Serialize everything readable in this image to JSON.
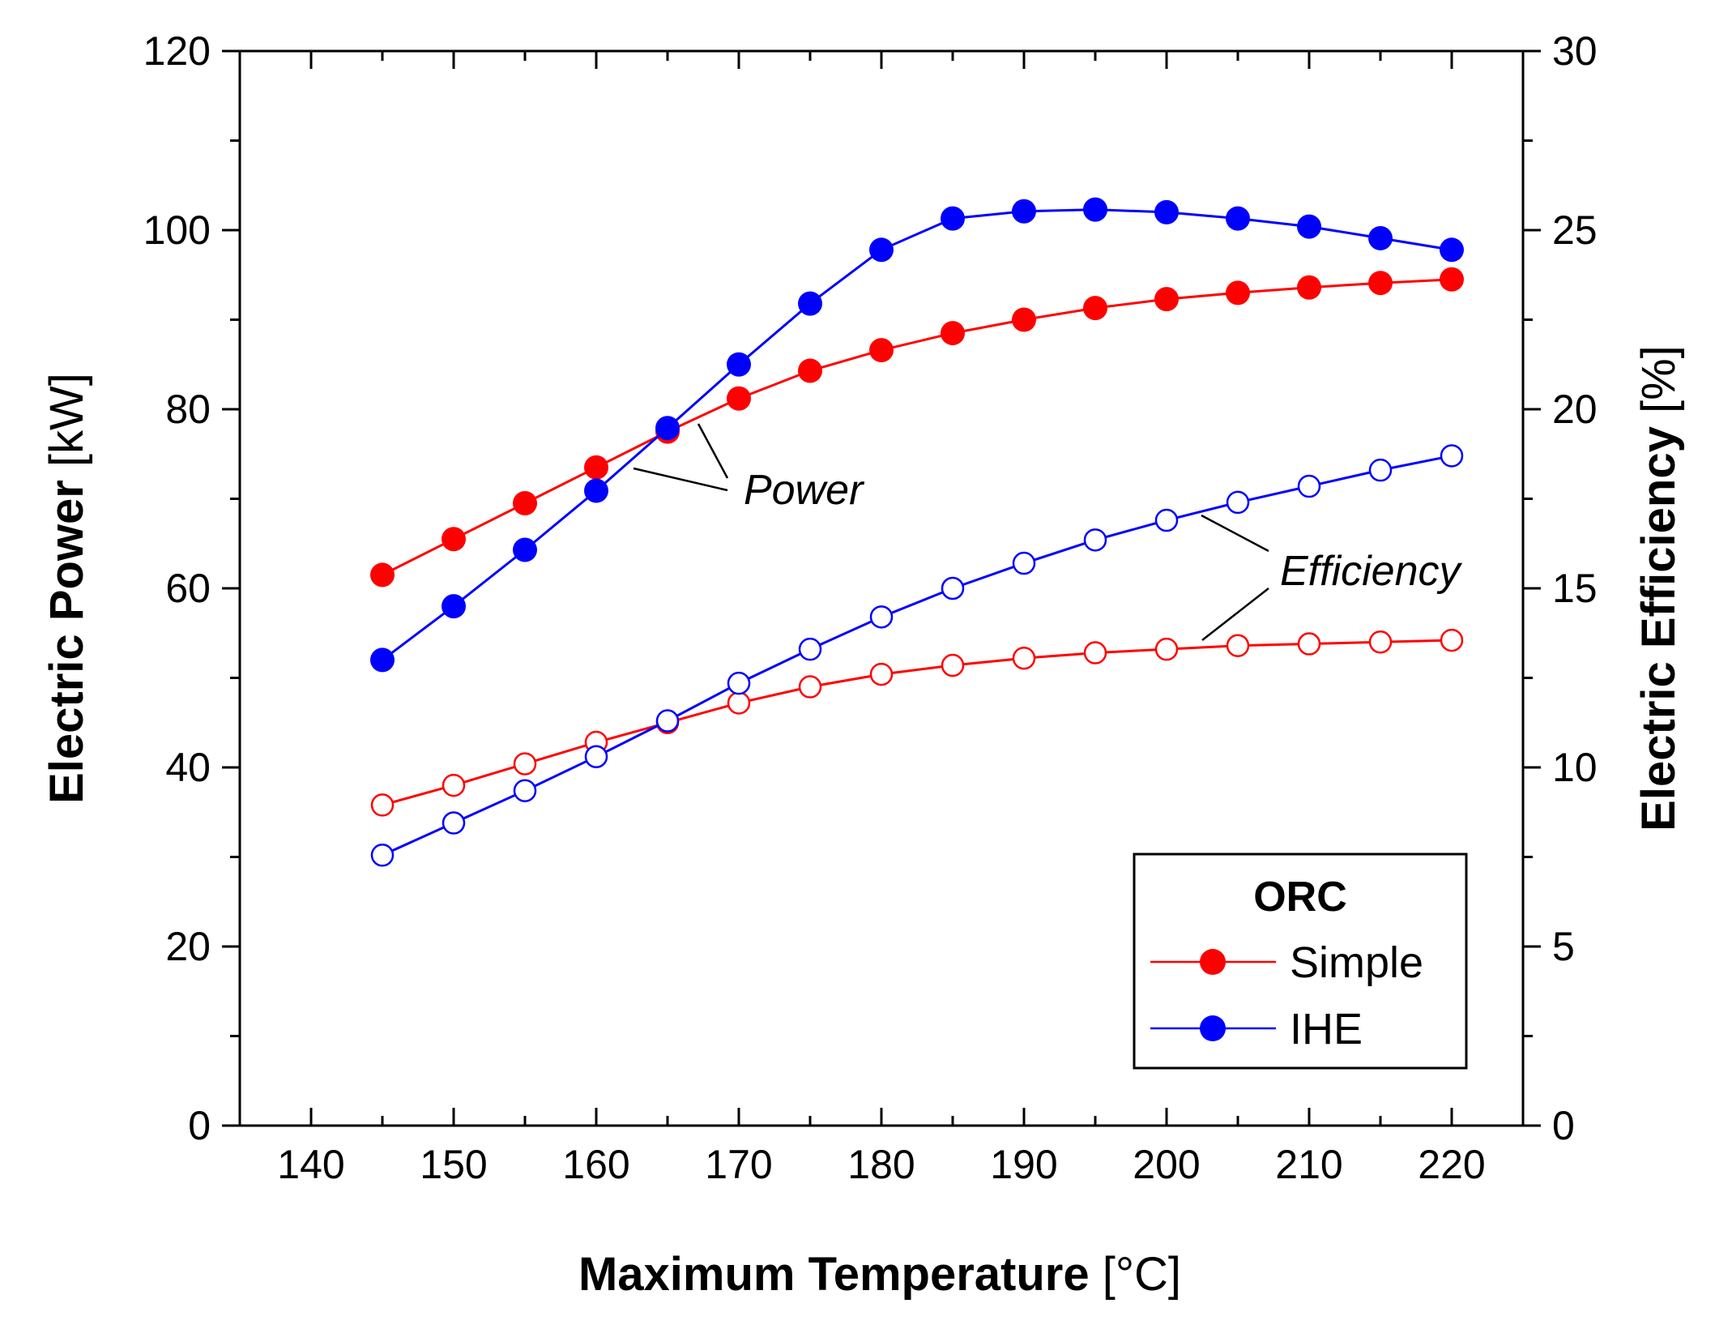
{
  "chart_data": {
    "type": "line",
    "xlabel": {
      "bold": "Maximum Temperature",
      "unit": "[°C]"
    },
    "ylabel_left": {
      "bold": "Electric Power",
      "unit": "[kW]"
    },
    "ylabel_right": {
      "bold": "Electric Efficiency",
      "unit": "[%]"
    },
    "xlim": [
      135,
      225
    ],
    "ylim_left": [
      0,
      120
    ],
    "ylim_right": [
      0,
      30
    ],
    "x_ticks": [
      140,
      150,
      160,
      170,
      180,
      190,
      200,
      210,
      220
    ],
    "y_left_ticks": [
      0,
      20,
      40,
      60,
      80,
      100,
      120
    ],
    "y_right_ticks": [
      0,
      5,
      10,
      15,
      20,
      25,
      30
    ],
    "grid": false,
    "x": [
      145,
      150,
      155,
      160,
      165,
      170,
      175,
      180,
      185,
      190,
      195,
      200,
      205,
      210,
      215,
      220
    ],
    "series": [
      {
        "name": "Simple",
        "quantity": "power",
        "axis": "left",
        "color": "#ff0000",
        "marker": "filled",
        "values": [
          61.5,
          65.5,
          69.5,
          73.5,
          77.5,
          81.2,
          84.3,
          86.6,
          88.5,
          90.0,
          91.3,
          92.3,
          93.0,
          93.6,
          94.1,
          94.5
        ]
      },
      {
        "name": "IHE",
        "quantity": "power",
        "axis": "left",
        "color": "#0000ff",
        "marker": "filled",
        "values": [
          52.0,
          58.0,
          64.3,
          70.9,
          77.9,
          85.0,
          91.8,
          97.8,
          101.3,
          102.1,
          102.3,
          102.0,
          101.3,
          100.4,
          99.1,
          97.8
        ]
      },
      {
        "name": "Simple",
        "quantity": "efficiency",
        "axis": "right",
        "color": "#ff0000",
        "marker": "open",
        "values": [
          8.95,
          9.5,
          10.1,
          10.7,
          11.25,
          11.8,
          12.25,
          12.6,
          12.85,
          13.05,
          13.2,
          13.3,
          13.4,
          13.45,
          13.5,
          13.55
        ]
      },
      {
        "name": "IHE",
        "quantity": "efficiency",
        "axis": "right",
        "color": "#0000ff",
        "marker": "open",
        "values": [
          7.55,
          8.45,
          9.35,
          10.3,
          11.3,
          12.35,
          13.3,
          14.2,
          15.0,
          15.7,
          16.35,
          16.9,
          17.4,
          17.85,
          18.3,
          18.7
        ]
      }
    ],
    "annotations": [
      {
        "text": "Power",
        "target": "power"
      },
      {
        "text": "Efficiency",
        "target": "efficiency"
      }
    ],
    "legend": {
      "title": "ORC",
      "position": "bottom-right",
      "entries": [
        {
          "label": "Simple",
          "color": "#ff0000"
        },
        {
          "label": "IHE",
          "color": "#0000ff"
        }
      ]
    }
  }
}
